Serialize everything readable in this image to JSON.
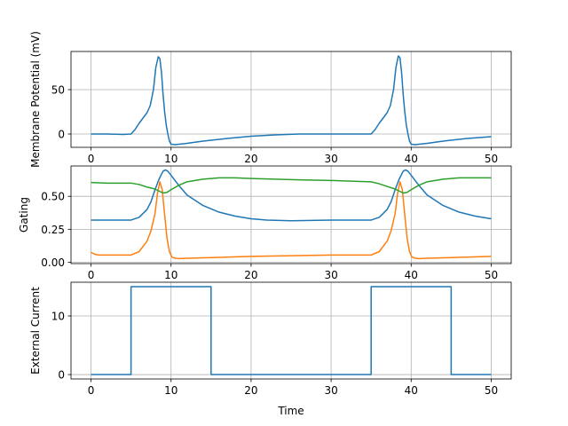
{
  "chart_data": [
    {
      "type": "line",
      "title": "",
      "xlabel": "",
      "ylabel": "Membrane Potential (mV)",
      "xlim": [
        -2.5,
        52.5
      ],
      "ylim": [
        -15,
        93
      ],
      "xticks": [
        0,
        10,
        20,
        30,
        40,
        50
      ],
      "yticks": [
        0,
        50
      ],
      "grid": true,
      "series": [
        {
          "color": "#1f77b4",
          "x": [
            0,
            2,
            4,
            5,
            5.5,
            6,
            6.5,
            7,
            7.4,
            7.8,
            8.1,
            8.4,
            8.6,
            8.8,
            9.0,
            9.2,
            9.4,
            9.6,
            9.8,
            10,
            10.5,
            11,
            12,
            14,
            17,
            20,
            23,
            26,
            30,
            33,
            35,
            35.5,
            36,
            36.5,
            37,
            37.4,
            37.8,
            38.1,
            38.4,
            38.6,
            38.8,
            39.0,
            39.2,
            39.4,
            39.6,
            39.8,
            40,
            40.5,
            41,
            42,
            44,
            47,
            50
          ],
          "y": [
            0,
            0,
            -0.5,
            0,
            5,
            12,
            18,
            24,
            32,
            50,
            75,
            87,
            85,
            70,
            45,
            25,
            10,
            0,
            -8,
            -11.5,
            -12,
            -11.5,
            -10.5,
            -8,
            -5,
            -2.5,
            -1,
            0,
            0,
            0,
            0,
            5,
            12,
            18,
            24,
            32,
            50,
            75,
            88,
            86,
            70,
            45,
            25,
            10,
            0,
            -8,
            -11.5,
            -12,
            -11.5,
            -10.5,
            -8,
            -5,
            -3
          ]
        }
      ]
    },
    {
      "type": "line",
      "title": "",
      "xlabel": "",
      "ylabel": "Gating",
      "xlim": [
        -2.5,
        52.5
      ],
      "ylim": [
        -0.01,
        0.73
      ],
      "xticks": [
        0,
        10,
        20,
        30,
        40,
        50
      ],
      "yticks": [
        0.0,
        0.25,
        0.5
      ],
      "ytick_labels": [
        "0.00",
        "0.25",
        "0.50"
      ],
      "grid": true,
      "series": [
        {
          "color": "#1f77b4",
          "x": [
            0,
            3,
            5,
            6,
            7,
            7.5,
            8,
            8.5,
            9,
            9.3,
            9.6,
            10,
            11,
            12,
            14,
            16,
            18,
            20,
            22,
            25,
            30,
            35,
            36,
            37,
            37.5,
            38,
            38.5,
            39,
            39.3,
            39.6,
            40,
            41,
            42,
            44,
            46,
            48,
            50
          ],
          "y": [
            0.32,
            0.32,
            0.32,
            0.34,
            0.4,
            0.46,
            0.55,
            0.63,
            0.69,
            0.7,
            0.69,
            0.66,
            0.58,
            0.51,
            0.43,
            0.38,
            0.35,
            0.33,
            0.32,
            0.315,
            0.32,
            0.32,
            0.34,
            0.4,
            0.46,
            0.55,
            0.63,
            0.69,
            0.7,
            0.69,
            0.66,
            0.58,
            0.51,
            0.43,
            0.38,
            0.35,
            0.33
          ]
        },
        {
          "color": "#ff7f0e",
          "x": [
            0,
            0.5,
            1,
            3,
            5,
            6,
            7,
            7.5,
            8,
            8.3,
            8.6,
            8.9,
            9.2,
            9.5,
            9.8,
            10.1,
            10.5,
            11,
            12,
            15,
            20,
            25,
            30,
            35,
            36,
            37,
            37.5,
            38,
            38.3,
            38.6,
            38.9,
            39.2,
            39.5,
            39.8,
            40.1,
            40.5,
            41,
            42,
            45,
            50
          ],
          "y": [
            0.075,
            0.06,
            0.055,
            0.055,
            0.055,
            0.08,
            0.16,
            0.24,
            0.37,
            0.52,
            0.61,
            0.55,
            0.36,
            0.18,
            0.08,
            0.04,
            0.03,
            0.028,
            0.03,
            0.035,
            0.045,
            0.05,
            0.055,
            0.055,
            0.08,
            0.16,
            0.24,
            0.37,
            0.52,
            0.61,
            0.55,
            0.36,
            0.18,
            0.08,
            0.04,
            0.03,
            0.028,
            0.03,
            0.035,
            0.045
          ]
        },
        {
          "color": "#2ca02c",
          "x": [
            0,
            2,
            5,
            6,
            7,
            8,
            8.5,
            9,
            9.5,
            10,
            11,
            12,
            14,
            16,
            18,
            20,
            23,
            26,
            30,
            35,
            36,
            37,
            38,
            38.5,
            39,
            39.5,
            40,
            41,
            42,
            44,
            46,
            48,
            50
          ],
          "y": [
            0.605,
            0.6,
            0.6,
            0.59,
            0.57,
            0.555,
            0.54,
            0.525,
            0.53,
            0.55,
            0.585,
            0.61,
            0.63,
            0.64,
            0.64,
            0.635,
            0.63,
            0.625,
            0.62,
            0.61,
            0.595,
            0.575,
            0.555,
            0.54,
            0.525,
            0.53,
            0.55,
            0.585,
            0.61,
            0.63,
            0.64,
            0.64,
            0.64
          ]
        }
      ]
    },
    {
      "type": "line",
      "title": "",
      "xlabel": "Time",
      "ylabel": "External Current",
      "xlim": [
        -2.5,
        52.5
      ],
      "ylim": [
        -0.75,
        15.75
      ],
      "xticks": [
        0,
        10,
        20,
        30,
        40,
        50
      ],
      "yticks": [
        0,
        10
      ],
      "grid": true,
      "series": [
        {
          "color": "#1f77b4",
          "x": [
            0,
            5,
            5,
            15,
            15,
            35,
            35,
            45,
            45,
            50
          ],
          "y": [
            0,
            0,
            15,
            15,
            0,
            0,
            15,
            15,
            0,
            0
          ]
        }
      ]
    }
  ]
}
